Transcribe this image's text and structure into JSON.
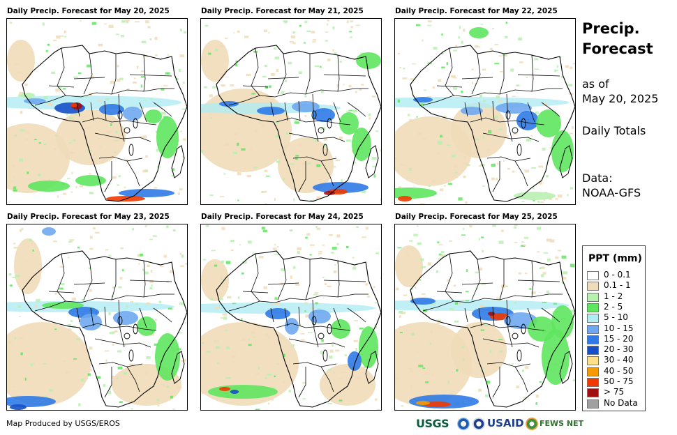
{
  "panels": [
    {
      "title": "Daily Precip. Forecast for May 20, 2025"
    },
    {
      "title": "Daily Precip. Forecast for May 21, 2025"
    },
    {
      "title": "Daily Precip. Forecast for May 22, 2025"
    },
    {
      "title": "Daily Precip. Forecast for May 23, 2025"
    },
    {
      "title": "Daily Precip. Forecast for May 24, 2025"
    },
    {
      "title": "Daily Precip. Forecast for May 25, 2025"
    }
  ],
  "sidebar": {
    "heading_line1": "Precip.",
    "heading_line2": "Forecast",
    "as_of_line1": "as of",
    "as_of_line2": "May 20, 2025",
    "totals": "Daily Totals",
    "data_line1": "Data:",
    "data_line2": "NOAA-GFS"
  },
  "legend": {
    "title": "PPT (mm)",
    "items": [
      {
        "label": "0 - 0.1",
        "color": "#ffffff"
      },
      {
        "label": "0.1 - 1",
        "color": "#f0dcb8"
      },
      {
        "label": "1 - 2",
        "color": "#b8f0b0"
      },
      {
        "label": "2 - 5",
        "color": "#5fe65f"
      },
      {
        "label": "5 - 10",
        "color": "#b0ecf4"
      },
      {
        "label": "10 - 15",
        "color": "#6fa8f0"
      },
      {
        "label": "15 - 20",
        "color": "#2f7ae6"
      },
      {
        "label": "20 - 30",
        "color": "#1550c8"
      },
      {
        "label": "30 - 40",
        "color": "#ffe08a"
      },
      {
        "label": "40 - 50",
        "color": "#f59a00"
      },
      {
        "label": "50 - 75",
        "color": "#f03a00"
      },
      {
        "label": "> 75",
        "color": "#a01010"
      },
      {
        "label": "No Data",
        "color": "#a0a0a0"
      }
    ]
  },
  "footer": {
    "credit": "Map Produced by USGS/EROS",
    "logo_usgs": "USGS",
    "logo_usaid": "USAID",
    "logo_fews": "FEWS NET"
  }
}
